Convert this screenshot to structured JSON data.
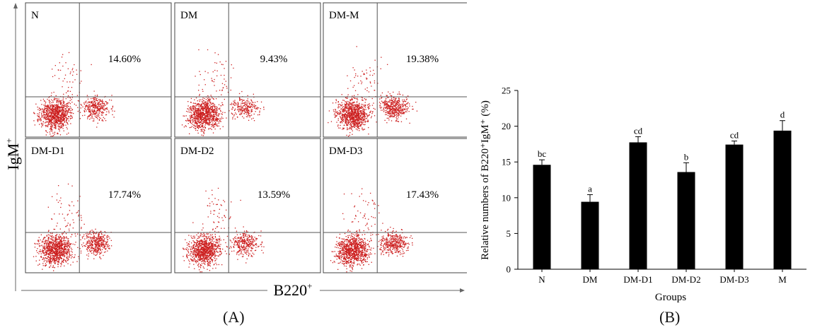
{
  "figure": {
    "panel_a_tag": "(A)",
    "panel_b_tag": "(B)"
  },
  "flow": {
    "y_axis_label": "IgM",
    "y_axis_sup": "+",
    "x_axis_label": "B220",
    "x_axis_sup": "+",
    "point_color": "#cc1f1f",
    "panels": [
      {
        "label": "N",
        "percent": "14.60%"
      },
      {
        "label": "DM",
        "percent": "9.43%"
      },
      {
        "label": "DM-M",
        "percent": "19.38%"
      },
      {
        "label": "DM-D1",
        "percent": "17.74%"
      },
      {
        "label": "DM-D2",
        "percent": "13.59%"
      },
      {
        "label": "DM-D3",
        "percent": "17.43%"
      }
    ]
  },
  "chart_data": {
    "type": "bar",
    "categories": [
      "N",
      "DM",
      "DM-D1",
      "DM-D2",
      "DM-D3",
      "M"
    ],
    "values": [
      14.6,
      9.43,
      17.74,
      13.59,
      17.43,
      19.38
    ],
    "errors": [
      0.7,
      1.0,
      0.8,
      1.3,
      0.5,
      1.4
    ],
    "significance": [
      "bc",
      "a",
      "cd",
      "b",
      "cd",
      "d"
    ],
    "xlabel": "Groups",
    "ylabel": "Relative numbers of B220⁺IgM⁺ (%)",
    "ylim": [
      0,
      25
    ],
    "yticks": [
      0,
      5,
      10,
      15,
      20,
      25
    ],
    "bar_color": "#000000",
    "grid": false
  }
}
